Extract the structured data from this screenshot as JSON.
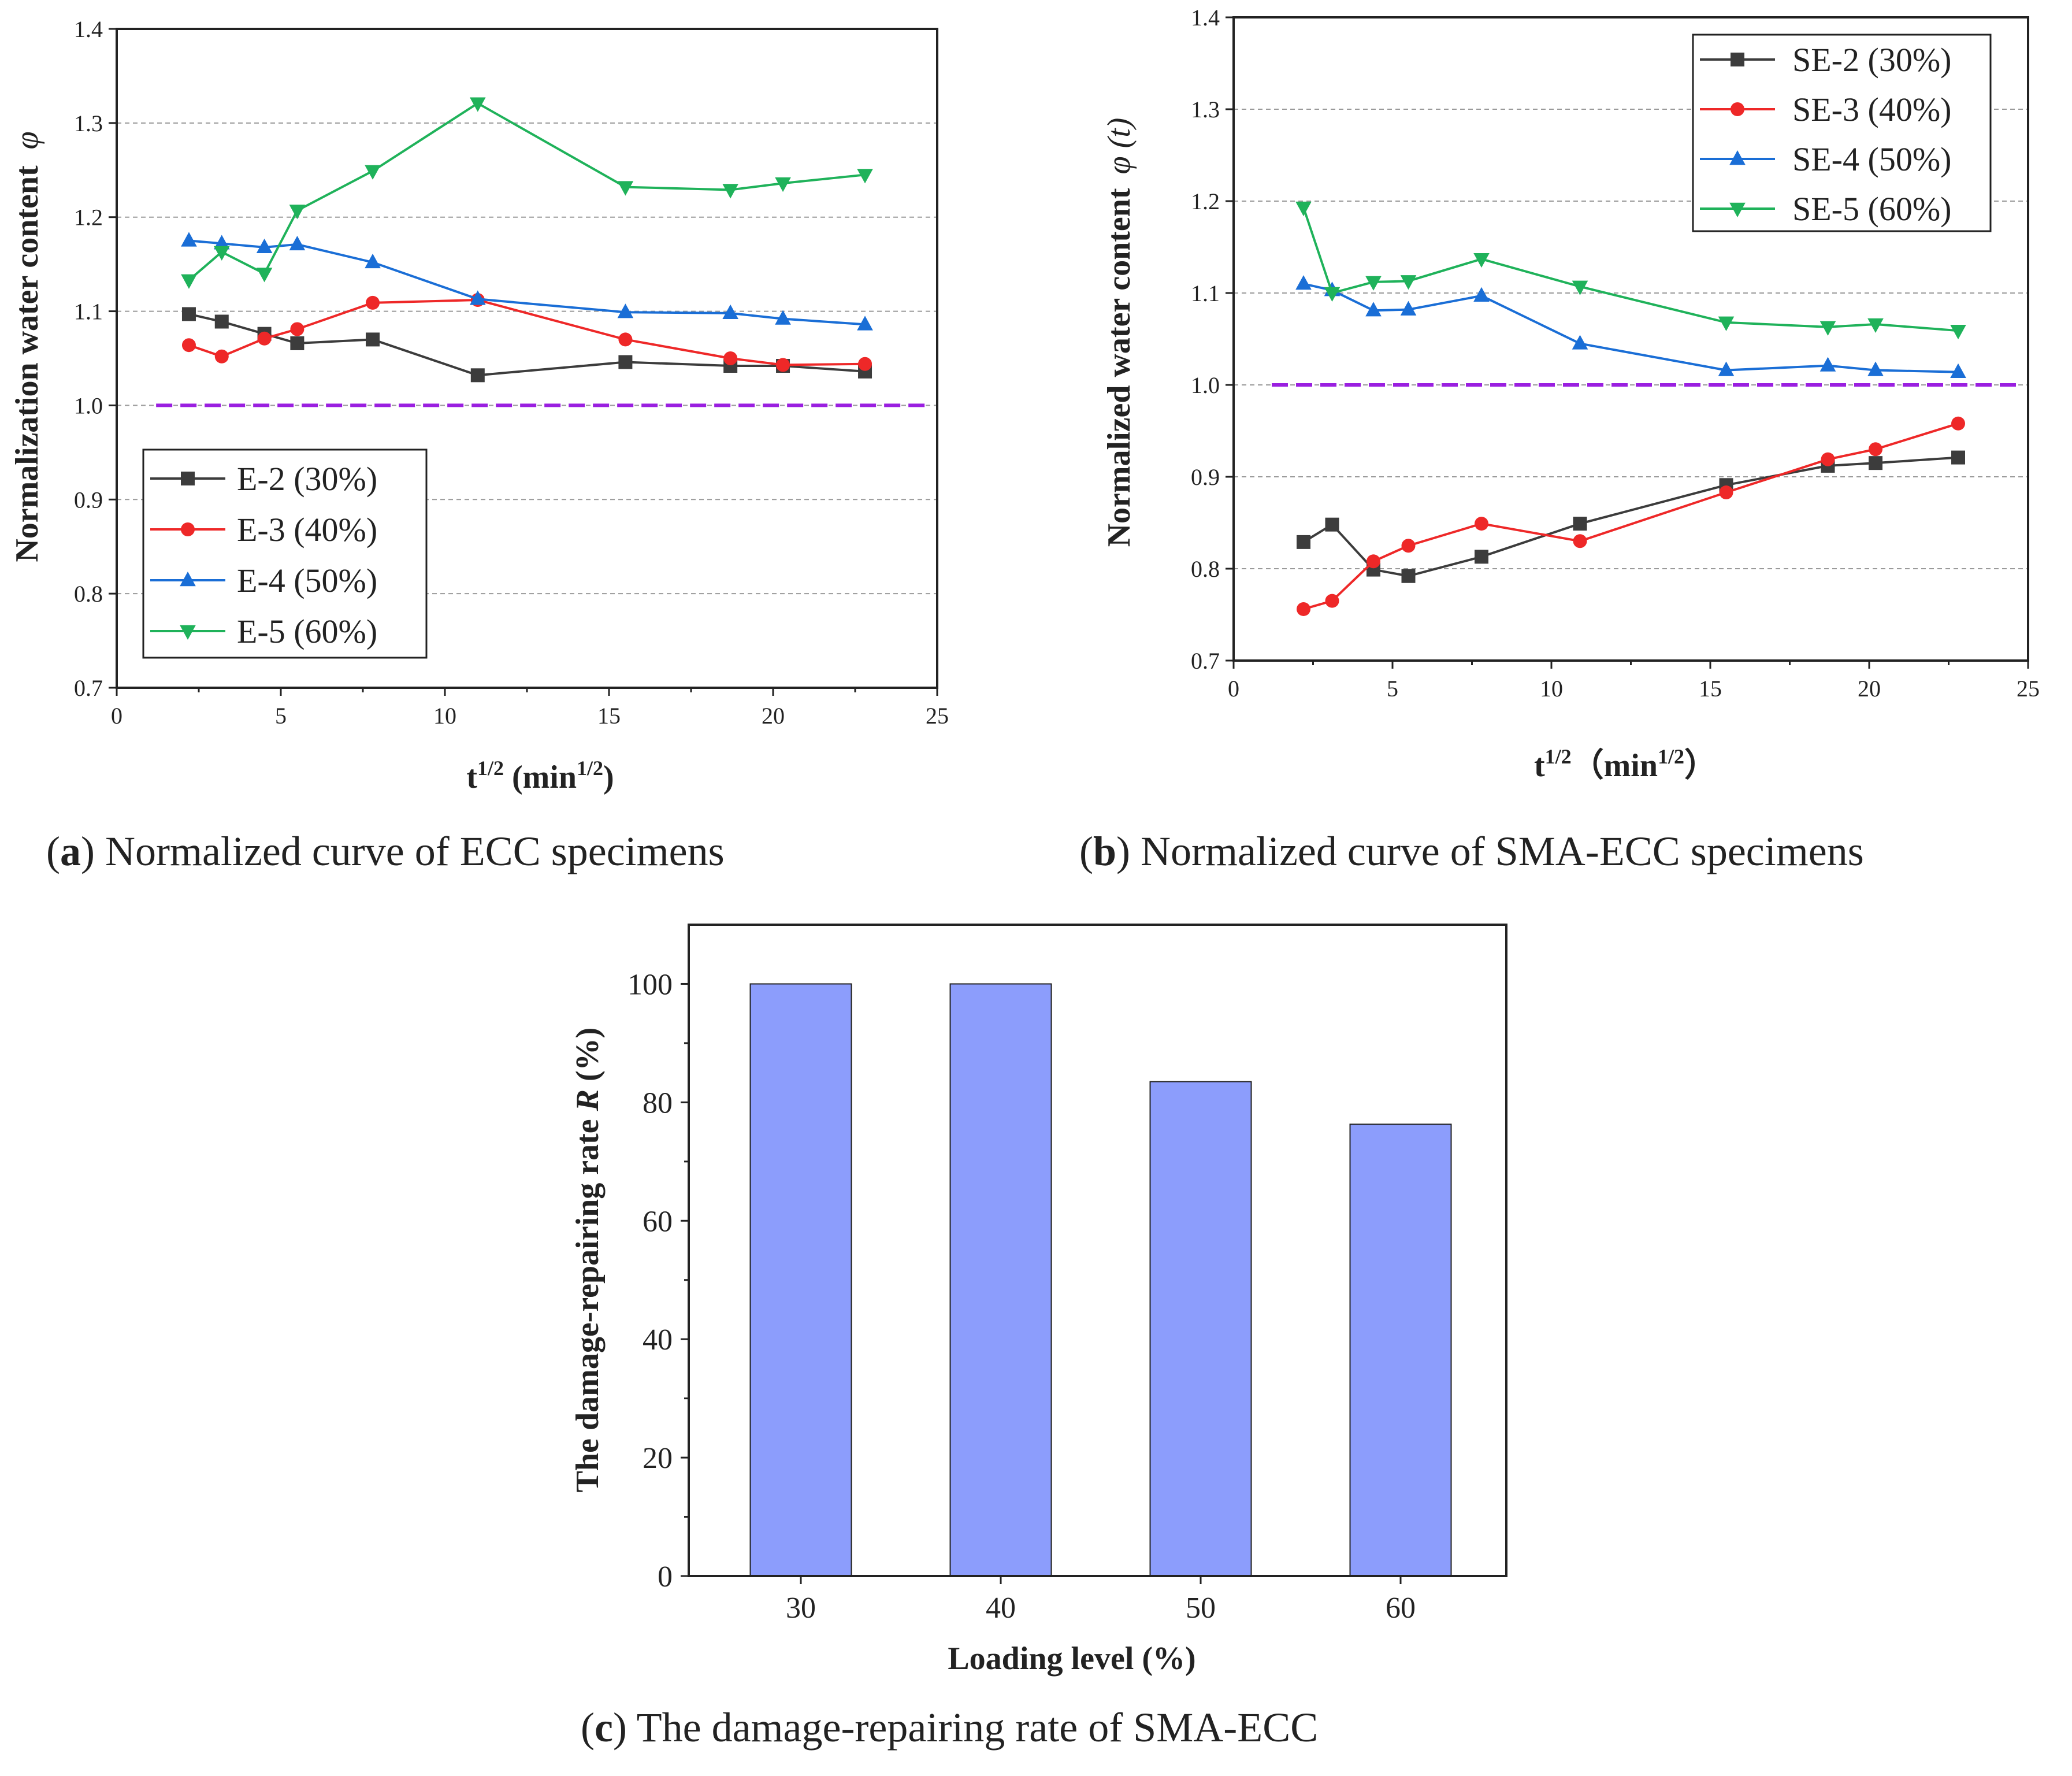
{
  "captions": {
    "a": {
      "letter": "a",
      "text": " Normalized curve of ECC specimens"
    },
    "b": {
      "letter": "b",
      "text": " Normalized curve of SMA-ECC specimens"
    },
    "c": {
      "letter": "c",
      "text": " The damage-repairing rate of SMA-ECC"
    }
  },
  "chart_data": [
    {
      "id": "a",
      "type": "line",
      "title": "Normalized curve of ECC specimens",
      "xlabel_base": "t",
      "xlabel_sup": "1/2",
      "xlabel_unit_open": " (min",
      "xlabel_unit_sup": "1/2",
      "xlabel_unit_close": ")",
      "ylabel": "Normalization water content",
      "ylabel_symbol": "φ",
      "xlim": [
        0,
        25
      ],
      "ylim": [
        0.7,
        1.4
      ],
      "xticks": [
        0,
        5,
        10,
        15,
        20,
        25
      ],
      "yticks": [
        0.7,
        0.8,
        0.9,
        1.0,
        1.1,
        1.2,
        1.3,
        1.4
      ],
      "ytick_labels": [
        "0.7",
        "0.8",
        "0.9",
        "1.0",
        "1.1",
        "1.2",
        "1.3",
        "1.4"
      ],
      "grid": true,
      "reference_line": 1.0,
      "legend_position": "lower-left",
      "x": [
        2.2,
        3.2,
        4.5,
        5.5,
        7.8,
        11.0,
        15.5,
        18.7,
        20.3,
        22.8
      ],
      "series": [
        {
          "name": "E-2 (30%)",
          "color": "#3c3c3c",
          "marker": "square",
          "values": [
            1.097,
            1.089,
            1.076,
            1.066,
            1.07,
            1.032,
            1.046,
            1.042,
            1.042,
            1.036
          ]
        },
        {
          "name": "E-3 (40%)",
          "color": "#ee2828",
          "marker": "circle",
          "values": [
            1.064,
            1.052,
            1.071,
            1.081,
            1.109,
            1.112,
            1.07,
            1.05,
            1.043,
            1.044
          ]
        },
        {
          "name": "E-4 (50%)",
          "color": "#1a6ed6",
          "marker": "triangle-up",
          "values": [
            1.175,
            1.172,
            1.168,
            1.171,
            1.152,
            1.113,
            1.099,
            1.098,
            1.092,
            1.086
          ]
        },
        {
          "name": "E-5 (60%)",
          "color": "#1fb25a",
          "marker": "triangle-down",
          "values": [
            1.133,
            1.163,
            1.14,
            1.207,
            1.249,
            1.321,
            1.232,
            1.229,
            1.236,
            1.245
          ]
        }
      ]
    },
    {
      "id": "b",
      "type": "line",
      "title": "Normalized curve of SMA-ECC specimens",
      "xlabel_base": "t",
      "xlabel_sup": "1/2",
      "xlabel_unit_open": "（min",
      "xlabel_unit_sup": "1/2",
      "xlabel_unit_close": "）",
      "ylabel": "Normalized water content",
      "ylabel_symbol": "φ (t)",
      "xlim": [
        0,
        25
      ],
      "ylim": [
        0.7,
        1.4
      ],
      "xticks": [
        0,
        5,
        10,
        15,
        20,
        25
      ],
      "yticks": [
        0.7,
        0.8,
        0.9,
        1.0,
        1.1,
        1.2,
        1.3,
        1.4
      ],
      "ytick_labels": [
        "0.7",
        "0.8",
        "0.9",
        "1.0",
        "1.1",
        "1.2",
        "1.3",
        "1.4"
      ],
      "grid": true,
      "reference_line": 1.0,
      "legend_position": "top-right",
      "x": [
        2.2,
        3.1,
        4.4,
        5.5,
        7.8,
        10.9,
        15.5,
        18.7,
        20.2,
        22.8
      ],
      "series": [
        {
          "name": "SE-2 (30%)",
          "color": "#3c3c3c",
          "marker": "square",
          "values": [
            0.829,
            0.848,
            0.799,
            0.792,
            0.813,
            0.849,
            0.891,
            0.912,
            0.915,
            0.921
          ]
        },
        {
          "name": "SE-3 (40%)",
          "color": "#ee2828",
          "marker": "circle",
          "values": [
            0.756,
            0.765,
            0.808,
            0.825,
            0.849,
            0.83,
            0.883,
            0.919,
            0.93,
            0.958
          ]
        },
        {
          "name": "SE-4 (50%)",
          "color": "#1a6ed6",
          "marker": "triangle-up",
          "values": [
            1.11,
            1.103,
            1.081,
            1.082,
            1.097,
            1.045,
            1.016,
            1.021,
            1.016,
            1.014
          ]
        },
        {
          "name": "SE-5 (60%)",
          "color": "#1fb25a",
          "marker": "triangle-down",
          "values": [
            1.193,
            1.1,
            1.112,
            1.113,
            1.137,
            1.107,
            1.068,
            1.063,
            1.066,
            1.059
          ]
        }
      ]
    },
    {
      "id": "c",
      "type": "bar",
      "title": "The damage-repairing rate of SMA-ECC",
      "xlabel": "Loading level (%)",
      "ylabel_pre": "The damage-repairing rate ",
      "ylabel_italic": "R",
      "ylabel_post": " (%)",
      "categories": [
        "30",
        "40",
        "50",
        "60"
      ],
      "values": [
        100,
        100,
        83.5,
        76.3
      ],
      "ylim": [
        0,
        110
      ],
      "yticks": [
        0,
        20,
        40,
        60,
        80,
        100
      ],
      "bar_color": "#8c9dfc",
      "grid": false
    }
  ]
}
